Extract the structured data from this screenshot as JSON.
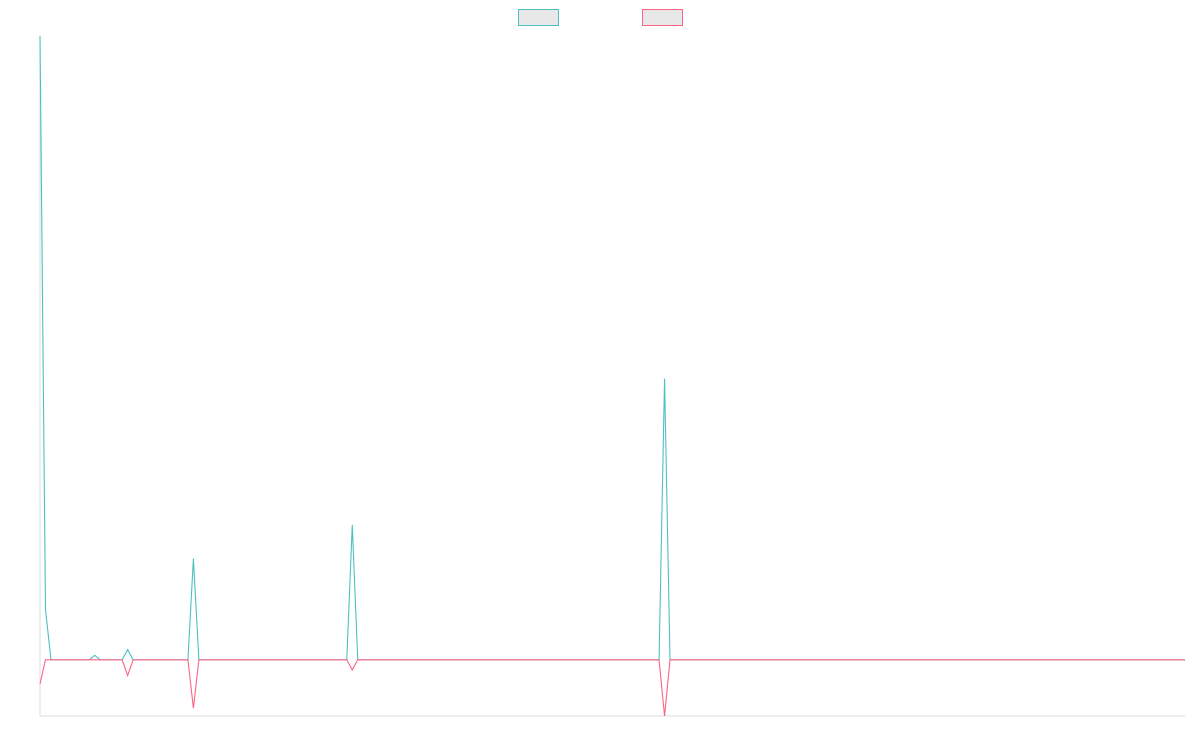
{
  "chart_data": {
    "type": "line",
    "title": "",
    "xlabel": "",
    "ylabel": "",
    "legend": {
      "placement": "top-center"
    },
    "grid": false,
    "x_count": 210,
    "ylim": [
      -10,
      111
    ],
    "series": [
      {
        "color": "#4bc0c0",
        "fill": "#e8e8e8",
        "points": [
          [
            0,
            111
          ],
          [
            1,
            9
          ],
          [
            2,
            0
          ],
          [
            9,
            0
          ],
          [
            10,
            0.8
          ],
          [
            11,
            0
          ],
          [
            15,
            0
          ],
          [
            16,
            1.8
          ],
          [
            17,
            0
          ],
          [
            27,
            0
          ],
          [
            28,
            18
          ],
          [
            29,
            0
          ],
          [
            56,
            0
          ],
          [
            57,
            24
          ],
          [
            58,
            0
          ],
          [
            113,
            0
          ],
          [
            114,
            50
          ],
          [
            115,
            0
          ],
          [
            209,
            0
          ]
        ]
      },
      {
        "color": "#ff6384",
        "fill": "#e8e8e8",
        "points": [
          [
            0,
            -4.3
          ],
          [
            1,
            0
          ],
          [
            15,
            0
          ],
          [
            16,
            -2.8
          ],
          [
            17,
            0
          ],
          [
            27,
            0
          ],
          [
            28,
            -8.6
          ],
          [
            29,
            0
          ],
          [
            56,
            0
          ],
          [
            57,
            -1.8
          ],
          [
            58,
            0
          ],
          [
            113,
            0
          ],
          [
            114,
            -10
          ],
          [
            115,
            0
          ],
          [
            209,
            0
          ]
        ]
      }
    ]
  }
}
